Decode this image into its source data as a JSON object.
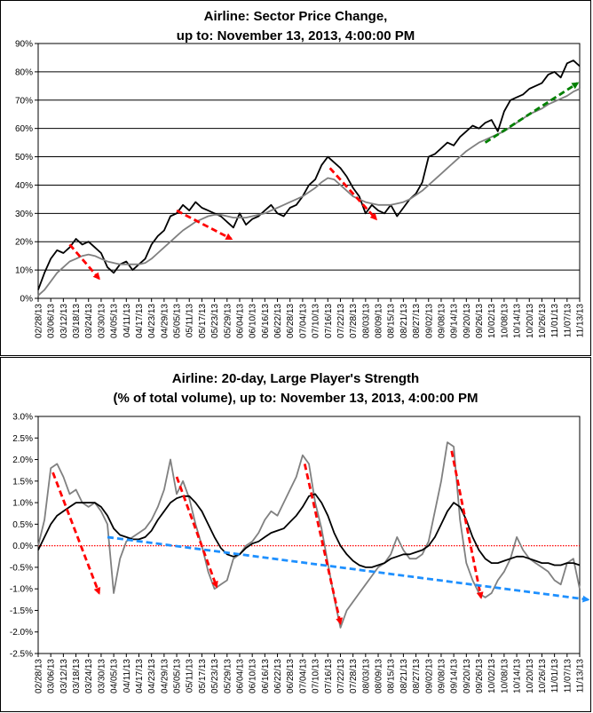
{
  "chart_data": [
    {
      "type": "line",
      "title": "Airline: Sector Price Change,",
      "subtitle": "up to: November 13, 2013, 4:00:00 PM",
      "ylim": [
        0,
        90
      ],
      "yticks": [
        "0%",
        "10%",
        "20%",
        "30%",
        "40%",
        "50%",
        "60%",
        "70%",
        "80%",
        "90%"
      ],
      "grid": true,
      "x_tick_labels": [
        "02/28/13",
        "03/06/13",
        "03/12/13",
        "03/18/13",
        "03/24/13",
        "03/30/13",
        "04/05/13",
        "04/11/13",
        "04/17/13",
        "04/23/13",
        "04/29/13",
        "05/05/13",
        "05/11/13",
        "05/17/13",
        "05/23/13",
        "05/29/13",
        "06/04/13",
        "06/10/13",
        "06/16/13",
        "06/22/13",
        "06/28/13",
        "07/04/13",
        "07/10/13",
        "07/16/13",
        "07/22/13",
        "07/28/13",
        "08/03/13",
        "08/09/13",
        "08/15/13",
        "08/21/13",
        "08/27/13",
        "09/02/13",
        "09/08/13",
        "09/14/13",
        "09/20/13",
        "09/26/13",
        "10/02/13",
        "10/08/13",
        "10/14/13",
        "10/20/13",
        "10/26/13",
        "11/01/13",
        "11/07/13",
        "11/13/13"
      ],
      "series": [
        {
          "color": "#000000",
          "x": [
            0,
            3,
            6,
            9,
            12,
            15,
            18,
            21,
            24,
            27,
            30,
            33,
            36,
            39,
            42,
            45,
            48,
            51,
            54,
            57,
            60,
            63,
            66,
            69,
            72,
            75,
            78,
            81,
            84,
            87,
            90,
            93,
            96,
            99,
            102,
            105,
            108,
            111,
            114,
            117,
            120,
            123,
            126,
            129,
            132,
            135,
            138,
            141,
            144,
            147,
            150,
            153,
            156,
            159,
            162,
            165,
            168,
            171,
            174,
            177,
            180,
            183,
            186,
            189,
            192,
            195,
            198,
            201,
            204,
            207,
            210,
            213,
            216,
            219,
            222,
            225,
            228,
            231,
            234,
            237,
            240,
            243,
            246,
            249,
            252,
            255,
            258
          ],
          "values": [
            3,
            9,
            14,
            17,
            16,
            18,
            21,
            19,
            20,
            18,
            16,
            11,
            9,
            12,
            13,
            10,
            12,
            14,
            19,
            22,
            24,
            29,
            30,
            33,
            31,
            34,
            32,
            31,
            30,
            29,
            27,
            25,
            30,
            26,
            28,
            29,
            31,
            33,
            30,
            29,
            32,
            33,
            36,
            40,
            42,
            47,
            50,
            48,
            46,
            43,
            39,
            36,
            30,
            33,
            31,
            30,
            33,
            29,
            32,
            35,
            37,
            41,
            50,
            51,
            53,
            55,
            54,
            57,
            59,
            61,
            60,
            62,
            63,
            59,
            66,
            70,
            71,
            72,
            74,
            75,
            76,
            79,
            80,
            78,
            83,
            84,
            82
          ]
        },
        {
          "color": "#808080",
          "x": [
            0,
            3,
            6,
            9,
            12,
            15,
            18,
            21,
            24,
            27,
            30,
            33,
            36,
            39,
            42,
            45,
            48,
            51,
            54,
            57,
            60,
            63,
            66,
            69,
            72,
            75,
            78,
            81,
            84,
            87,
            90,
            93,
            96,
            99,
            102,
            105,
            108,
            111,
            114,
            117,
            120,
            123,
            126,
            129,
            132,
            135,
            138,
            141,
            144,
            147,
            150,
            153,
            156,
            159,
            162,
            165,
            168,
            171,
            174,
            177,
            180,
            183,
            186,
            189,
            192,
            195,
            198,
            201,
            204,
            207,
            210,
            213,
            216,
            219,
            222,
            225,
            228,
            231,
            234,
            237,
            240,
            243,
            246,
            249,
            252,
            255,
            258
          ],
          "values": [
            1,
            3,
            6,
            9,
            11,
            13,
            14,
            15,
            15.5,
            15,
            14,
            13,
            12.5,
            12,
            12,
            12,
            12,
            12.5,
            14,
            16,
            18,
            20,
            22,
            24,
            25.5,
            27,
            28,
            29,
            29.5,
            29.5,
            29,
            28.5,
            28.5,
            28.5,
            29,
            29.5,
            30,
            31,
            32,
            33,
            34,
            35,
            36,
            37.5,
            39,
            41,
            42.5,
            42,
            40,
            38,
            36,
            35,
            34,
            33.5,
            33,
            33,
            33,
            33.5,
            34,
            35,
            36.5,
            38,
            40,
            42,
            44,
            46,
            48,
            50,
            52,
            53.5,
            55,
            56,
            57,
            58,
            59,
            60.5,
            62,
            63.5,
            65,
            66,
            67,
            68.5,
            69.5,
            70.5,
            71.5,
            73,
            74
          ]
        }
      ],
      "arrows": [
        {
          "color": "#ff0000",
          "x0": 15,
          "y0": 19,
          "x1": 29,
          "y1": 7
        },
        {
          "color": "#ff0000",
          "x0": 66,
          "y0": 31,
          "x1": 92,
          "y1": 21
        },
        {
          "color": "#ff0000",
          "x0": 139,
          "y0": 46,
          "x1": 161,
          "y1": 28
        },
        {
          "color": "#008000",
          "x0": 213,
          "y0": 55,
          "x1": 257,
          "y1": 76
        }
      ]
    },
    {
      "type": "line",
      "title": "Airline: 20-day, Large Player's Strength",
      "subtitle": "(% of total volume), up to: November 13, 2013, 4:00:00 PM",
      "ylim": [
        -2.5,
        3.0
      ],
      "yticks": [
        "-2.5%",
        "-2.0%",
        "-1.5%",
        "-1.0%",
        "-0.5%",
        "0.0%",
        "0.5%",
        "1.0%",
        "1.5%",
        "2.0%",
        "2.5%",
        "3.0%"
      ],
      "grid": false,
      "zero_line_color": "#ff0000",
      "x_tick_labels": [
        "02/28/13",
        "03/06/13",
        "03/12/13",
        "03/18/13",
        "03/24/13",
        "03/30/13",
        "04/05/13",
        "04/11/13",
        "04/17/13",
        "04/23/13",
        "04/29/13",
        "05/05/13",
        "05/11/13",
        "05/17/13",
        "05/23/13",
        "05/29/13",
        "06/04/13",
        "06/10/13",
        "06/16/13",
        "06/22/13",
        "06/28/13",
        "07/04/13",
        "07/10/13",
        "07/16/13",
        "07/22/13",
        "07/28/13",
        "08/03/13",
        "08/09/13",
        "08/15/13",
        "08/21/13",
        "08/27/13",
        "09/02/13",
        "09/08/13",
        "09/14/13",
        "09/20/13",
        "09/26/13",
        "10/02/13",
        "10/08/13",
        "10/14/13",
        "10/20/13",
        "10/26/13",
        "11/01/13",
        "11/07/13",
        "11/13/13"
      ],
      "series": [
        {
          "color": "#808080",
          "x": [
            0,
            3,
            6,
            9,
            12,
            15,
            18,
            21,
            24,
            27,
            30,
            33,
            36,
            39,
            42,
            45,
            48,
            51,
            54,
            57,
            60,
            63,
            66,
            69,
            72,
            75,
            78,
            81,
            84,
            87,
            90,
            93,
            96,
            99,
            102,
            105,
            108,
            111,
            114,
            117,
            120,
            123,
            126,
            129,
            132,
            135,
            138,
            141,
            144,
            147,
            150,
            153,
            156,
            159,
            162,
            165,
            168,
            171,
            174,
            177,
            180,
            183,
            186,
            189,
            192,
            195,
            198,
            201,
            204,
            207,
            210,
            213,
            216,
            219,
            222,
            225,
            228,
            231,
            234,
            237,
            240,
            243,
            246,
            249,
            252,
            255,
            258
          ],
          "values": [
            0,
            0.6,
            1.8,
            1.9,
            1.6,
            1.2,
            1.3,
            1.0,
            0.9,
            1.0,
            0.8,
            0.5,
            -1.1,
            -0.3,
            0.1,
            0.2,
            0.3,
            0.4,
            0.6,
            0.9,
            1.3,
            2.0,
            1.2,
            1.5,
            1.1,
            0.5,
            0.0,
            -0.6,
            -1.0,
            -0.9,
            -0.8,
            -0.3,
            -0.2,
            0.0,
            0.1,
            0.3,
            0.6,
            0.8,
            0.7,
            1.0,
            1.3,
            1.6,
            2.1,
            1.9,
            1.0,
            0.4,
            -0.4,
            -1.2,
            -1.9,
            -1.5,
            -1.3,
            -1.1,
            -0.9,
            -0.7,
            -0.5,
            -0.4,
            -0.2,
            0.2,
            -0.1,
            -0.3,
            -0.3,
            -0.2,
            0.1,
            0.8,
            1.5,
            2.4,
            2.3,
            0.6,
            -0.4,
            -0.8,
            -1.1,
            -1.2,
            -1.1,
            -0.8,
            -0.6,
            -0.3,
            0.2,
            -0.1,
            -0.3,
            -0.4,
            -0.5,
            -0.6,
            -0.8,
            -0.9,
            -0.4,
            -0.3,
            -1.0
          ]
        },
        {
          "color": "#000000",
          "x": [
            0,
            3,
            6,
            9,
            12,
            15,
            18,
            21,
            24,
            27,
            30,
            33,
            36,
            39,
            42,
            45,
            48,
            51,
            54,
            57,
            60,
            63,
            66,
            69,
            72,
            75,
            78,
            81,
            84,
            87,
            90,
            93,
            96,
            99,
            102,
            105,
            108,
            111,
            114,
            117,
            120,
            123,
            126,
            129,
            132,
            135,
            138,
            141,
            144,
            147,
            150,
            153,
            156,
            159,
            162,
            165,
            168,
            171,
            174,
            177,
            180,
            183,
            186,
            189,
            192,
            195,
            198,
            201,
            204,
            207,
            210,
            213,
            216,
            219,
            222,
            225,
            228,
            231,
            234,
            237,
            240,
            243,
            246,
            249,
            252,
            255,
            258
          ],
          "values": [
            -0.1,
            0.2,
            0.5,
            0.7,
            0.8,
            0.9,
            1.0,
            1.0,
            1.0,
            1.0,
            0.9,
            0.7,
            0.4,
            0.25,
            0.2,
            0.15,
            0.15,
            0.2,
            0.35,
            0.6,
            0.8,
            1.0,
            1.1,
            1.15,
            1.15,
            1.0,
            0.8,
            0.5,
            0.2,
            -0.05,
            -0.2,
            -0.25,
            -0.2,
            -0.05,
            0.05,
            0.1,
            0.2,
            0.3,
            0.35,
            0.4,
            0.55,
            0.7,
            0.9,
            1.15,
            1.2,
            1.0,
            0.7,
            0.3,
            0.0,
            -0.2,
            -0.35,
            -0.45,
            -0.5,
            -0.5,
            -0.45,
            -0.4,
            -0.3,
            -0.25,
            -0.2,
            -0.2,
            -0.15,
            -0.1,
            0.0,
            0.2,
            0.5,
            0.8,
            1.0,
            0.9,
            0.6,
            0.2,
            -0.1,
            -0.3,
            -0.4,
            -0.4,
            -0.35,
            -0.3,
            -0.25,
            -0.25,
            -0.3,
            -0.35,
            -0.4,
            -0.4,
            -0.45,
            -0.45,
            -0.4,
            -0.4,
            -0.45
          ]
        }
      ],
      "arrows": [
        {
          "color": "#ff0000",
          "x0": 7,
          "y0": 1.7,
          "x1": 29,
          "y1": -1.1
        },
        {
          "color": "#ff0000",
          "x0": 66,
          "y0": 1.6,
          "x1": 85,
          "y1": -0.95
        },
        {
          "color": "#ff0000",
          "x0": 127,
          "y0": 1.9,
          "x1": 144,
          "y1": -1.8
        },
        {
          "color": "#ff0000",
          "x0": 197,
          "y0": 2.2,
          "x1": 211,
          "y1": -1.2
        },
        {
          "color": "#1e90ff",
          "x0": 33,
          "y0": 0.2,
          "x1": 262,
          "y1": -1.25
        }
      ]
    }
  ]
}
